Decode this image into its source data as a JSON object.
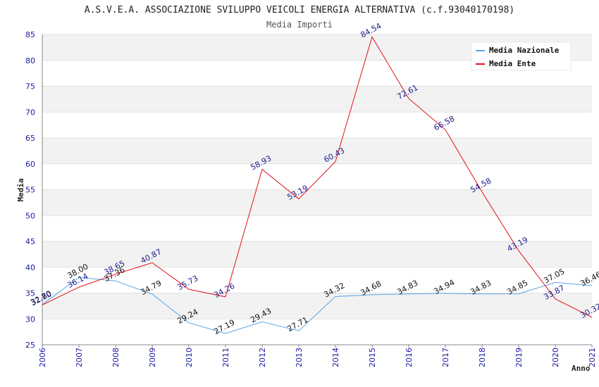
{
  "chart_data": {
    "type": "line",
    "title": "A.S.V.E.A. ASSOCIAZIONE SVILUPPO VEICOLI ENERGIA ALTERNATIVA (c.f.93040170198)",
    "subtitle": "Media Importi",
    "xlabel": "Anno",
    "ylabel": "Media",
    "ylim": [
      25,
      85
    ],
    "yticks": [
      25,
      30,
      35,
      40,
      45,
      50,
      55,
      60,
      65,
      70,
      75,
      80,
      85
    ],
    "x": [
      "2006",
      "2007",
      "2008",
      "2009",
      "2010",
      "2011",
      "2012",
      "2013",
      "2014",
      "2015",
      "2016",
      "2017",
      "2018",
      "2019",
      "2020",
      "2021"
    ],
    "grid": true,
    "legend_position": "top-right",
    "series": [
      {
        "name": "Media Nazionale",
        "color": "#5aa5e8",
        "values": [
          32.8,
          38.0,
          37.36,
          34.79,
          29.24,
          27.19,
          29.43,
          27.71,
          34.32,
          34.68,
          34.83,
          34.94,
          34.83,
          34.85,
          37.05,
          36.46
        ],
        "labels": [
          "32.80",
          "38.00",
          "37.36",
          "34.79",
          "29.24",
          "27.19",
          "29.43",
          "27.71",
          "34.32",
          "34.68",
          "34.83",
          "34.94",
          "34.83",
          "34.85",
          "37.05",
          "36.46"
        ]
      },
      {
        "name": "Media Ente",
        "color": "#e0101a",
        "values": [
          32.7,
          36.14,
          38.65,
          40.87,
          35.73,
          34.26,
          58.93,
          53.19,
          60.43,
          84.54,
          72.61,
          66.58,
          54.58,
          43.19,
          33.87,
          30.32
        ],
        "labels": [
          "32.70",
          "36.14",
          "38.65",
          "40.87",
          "35.73",
          "34.26",
          "58.93",
          "53.19",
          "60.43",
          "84.54",
          "72.61",
          "66.58",
          "54.58",
          "43.19",
          "33.87",
          "30.32"
        ]
      }
    ]
  }
}
